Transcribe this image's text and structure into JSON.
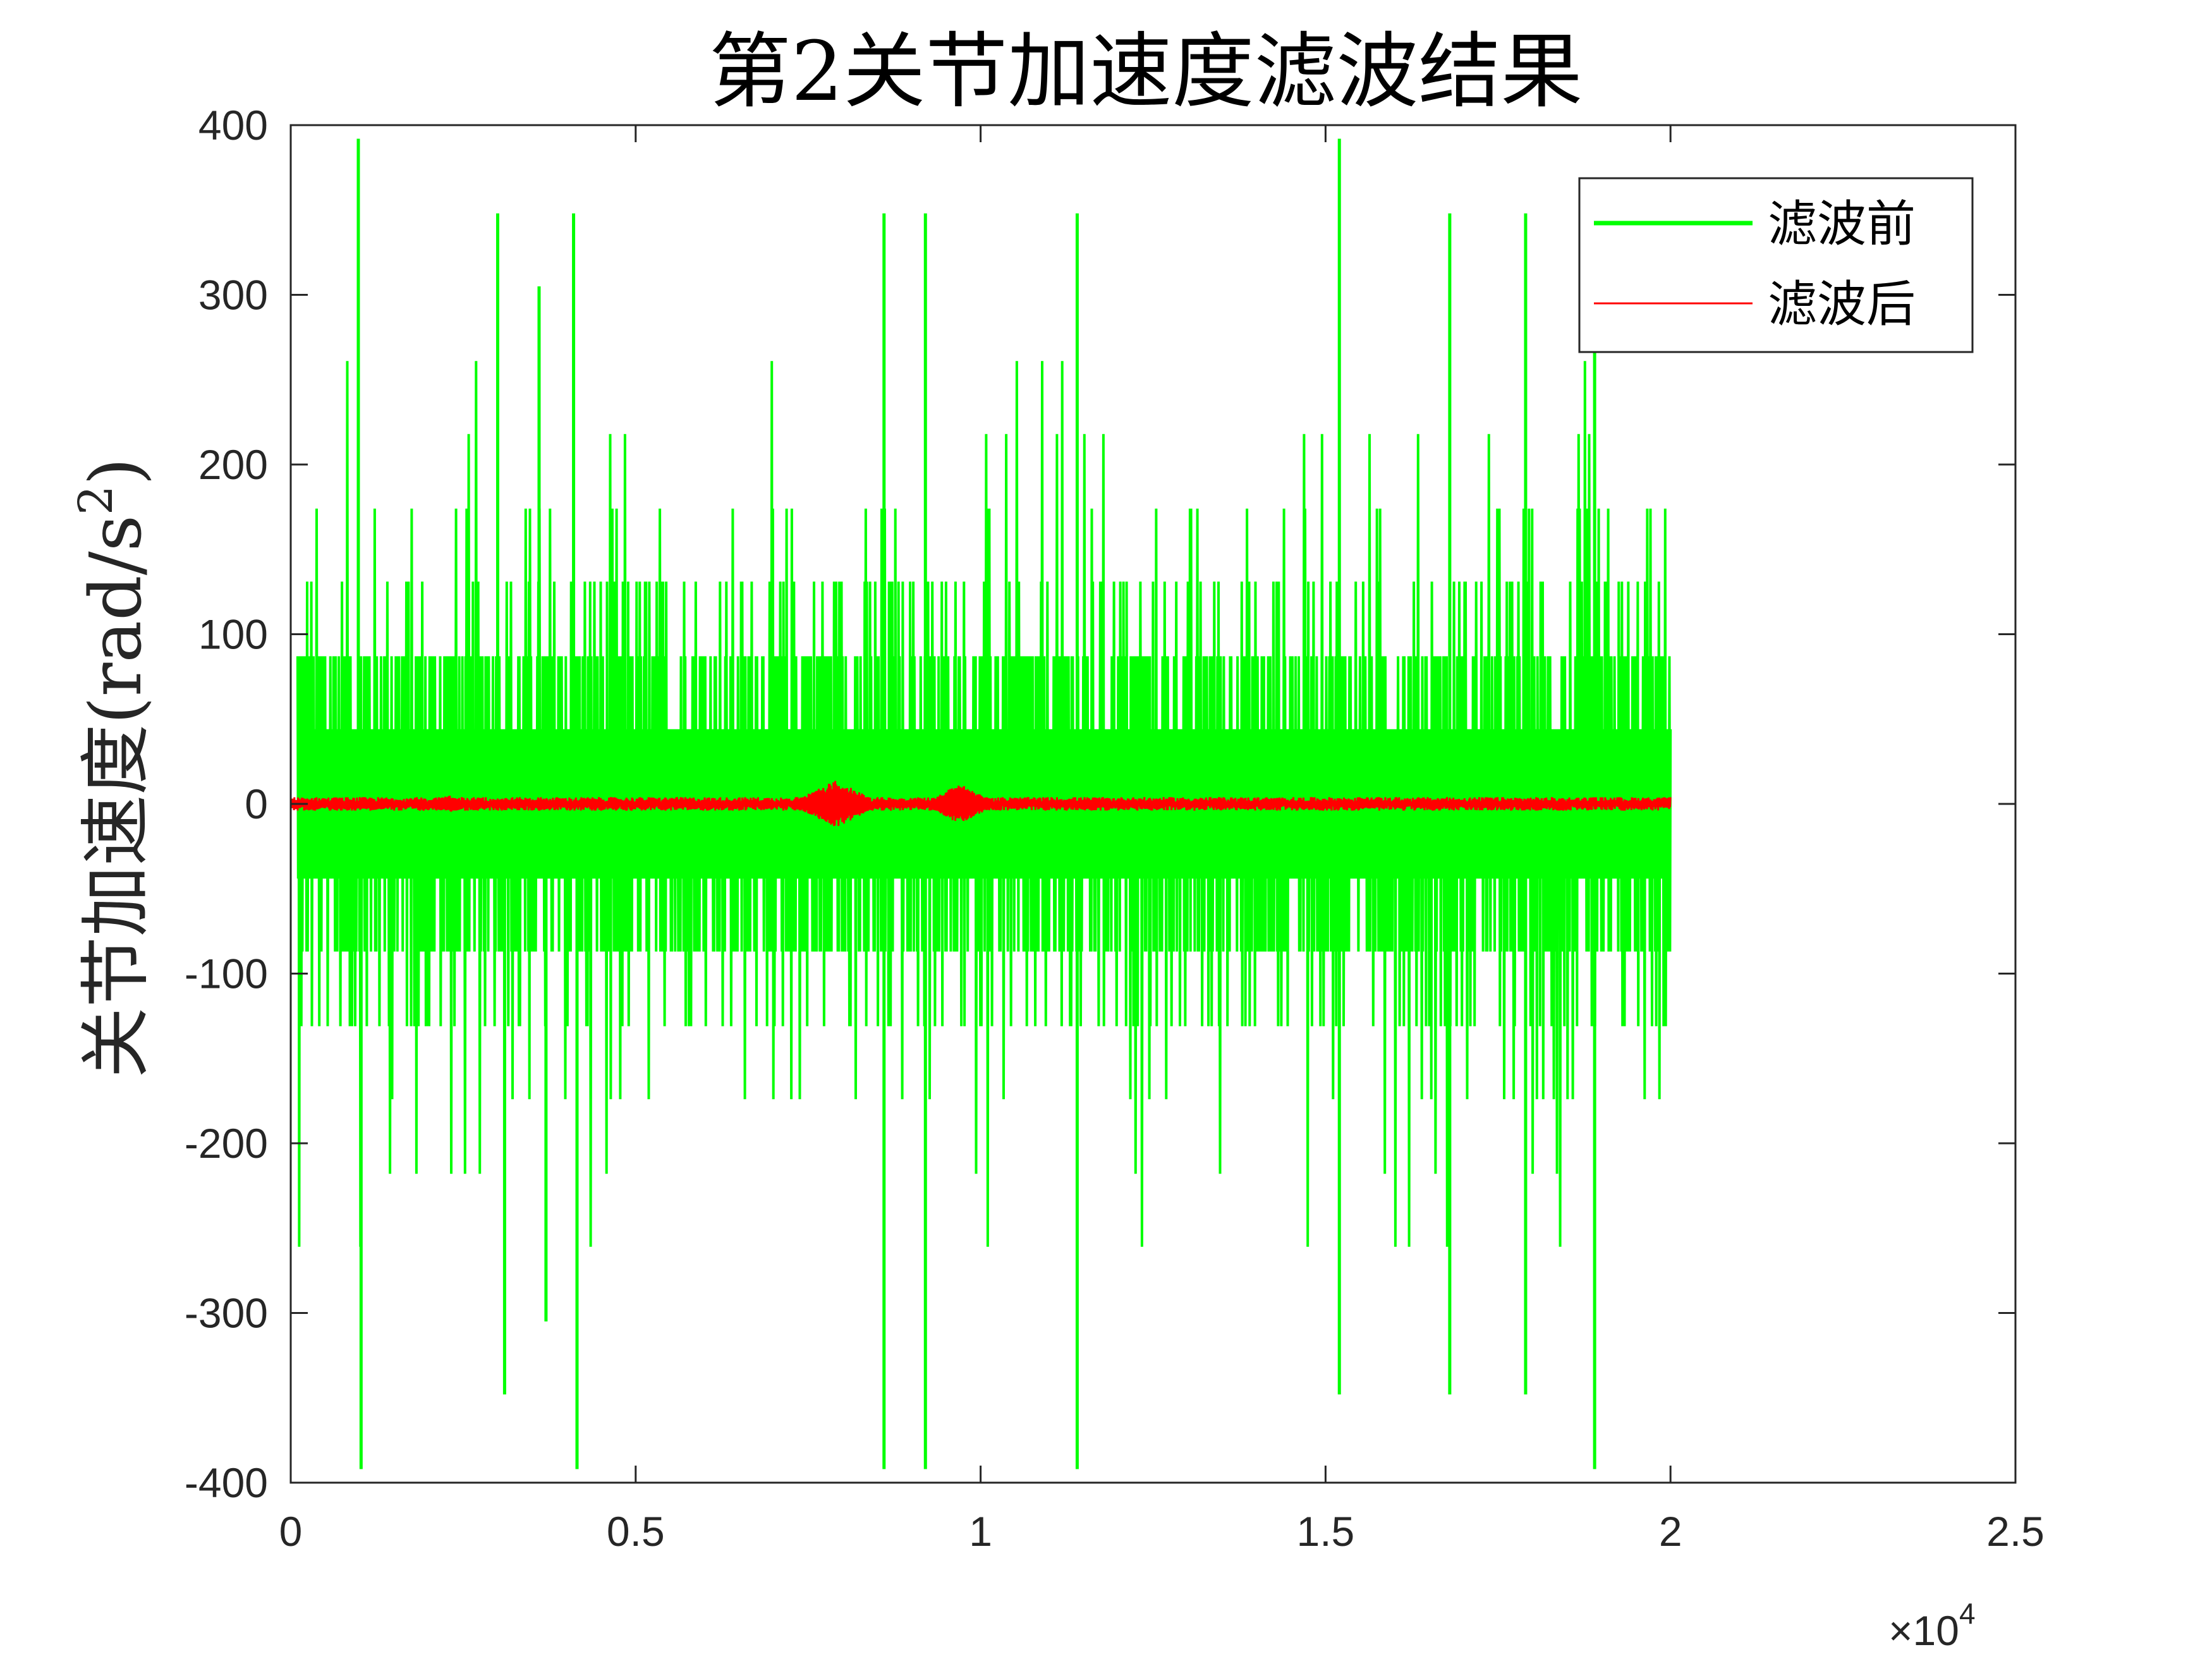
{
  "chart_data": {
    "type": "line",
    "title": "第2关节加速度滤波结果",
    "xlabel": "",
    "ylabel_main": "关节加速度",
    "ylabel_unit_open": "(rad/s",
    "ylabel_unit_sup": "2",
    "ylabel_unit_close": ")",
    "x_multiplier_symbol": "×10",
    "x_multiplier_exp": "4",
    "xlim": [
      0,
      2.5
    ],
    "ylim": [
      -400,
      400
    ],
    "x_ticks": [
      0,
      0.5,
      1,
      1.5,
      2,
      2.5
    ],
    "x_tick_labels": [
      "0",
      "0.5",
      "1",
      "1.5",
      "2",
      "2.5"
    ],
    "y_ticks": [
      -400,
      -300,
      -200,
      -100,
      0,
      100,
      200,
      300,
      400
    ],
    "y_tick_labels": [
      "-400",
      "-300",
      "-200",
      "-100",
      "0",
      "100",
      "200",
      "300",
      "400"
    ],
    "grid": false,
    "legend_position": "top-right",
    "series": [
      {
        "name": "滤波前",
        "color": "#00ff00",
        "x_range": [
          0.01,
          2.0
        ],
        "baseline_band": [
          -44,
          44
        ],
        "typical_envelope": [
          -87,
          87
        ],
        "max_abs": 392,
        "peaks": [
          {
            "x": 0.098,
            "y": 392
          },
          {
            "x": 0.102,
            "y": -392
          },
          {
            "x": 0.3,
            "y": 348
          },
          {
            "x": 0.31,
            "y": -348
          },
          {
            "x": 0.36,
            "y": 305
          },
          {
            "x": 0.37,
            "y": -305
          },
          {
            "x": 0.41,
            "y": 348
          },
          {
            "x": 0.415,
            "y": -392
          },
          {
            "x": 0.86,
            "y": 348
          },
          {
            "x": 0.86,
            "y": -392
          },
          {
            "x": 0.92,
            "y": 348
          },
          {
            "x": 0.92,
            "y": -392
          },
          {
            "x": 1.14,
            "y": 348
          },
          {
            "x": 1.14,
            "y": -392
          },
          {
            "x": 1.52,
            "y": 392
          },
          {
            "x": 1.52,
            "y": -348
          },
          {
            "x": 1.68,
            "y": 348
          },
          {
            "x": 1.68,
            "y": -348
          },
          {
            "x": 1.79,
            "y": 348
          },
          {
            "x": 1.79,
            "y": -348
          },
          {
            "x": 1.89,
            "y": 305
          },
          {
            "x": 1.89,
            "y": -392
          }
        ]
      },
      {
        "name": "滤波后",
        "color": "#ff0000",
        "x_range": [
          0,
          2.0
        ],
        "typical_amplitude": 4,
        "bursts": [
          {
            "x_start": 0.7,
            "x_end": 0.84,
            "center": 0.79,
            "amplitude": 14
          },
          {
            "x_start": 0.93,
            "x_end": 1.04,
            "center": 0.97,
            "amplitude": 12
          },
          {
            "x_start": 0.18,
            "x_end": 0.28,
            "center": 0.23,
            "amplitude": 5
          }
        ]
      }
    ]
  }
}
